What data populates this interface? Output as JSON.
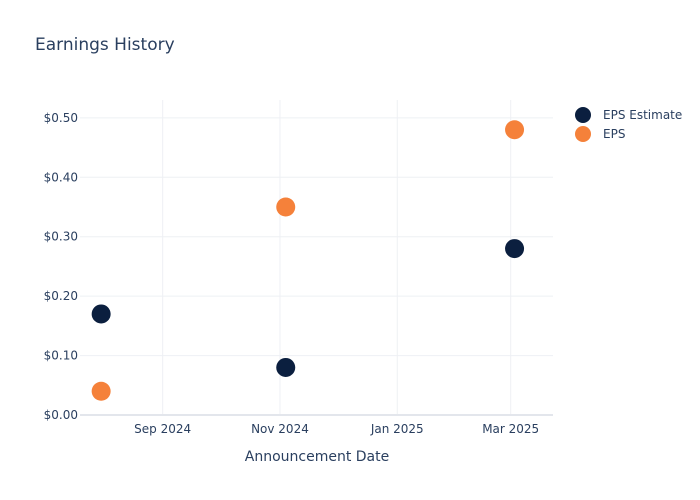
{
  "chart_data": {
    "type": "scatter",
    "title": "Earnings History",
    "xlabel": "Announcement Date",
    "ylabel": "",
    "x_ticks": [
      {
        "date": "2024-09-01",
        "label": "Sep 2024"
      },
      {
        "date": "2024-11-01",
        "label": "Nov 2024"
      },
      {
        "date": "2025-01-01",
        "label": "Jan 2025"
      },
      {
        "date": "2025-03-01",
        "label": "Mar 2025"
      }
    ],
    "xlim": [
      "2024-07-20",
      "2025-03-23"
    ],
    "ylim": [
      0,
      0.53
    ],
    "y_ticks": [
      {
        "value": 0.0,
        "label": "$0.00"
      },
      {
        "value": 0.1,
        "label": "$0.10"
      },
      {
        "value": 0.2,
        "label": "$0.20"
      },
      {
        "value": 0.3,
        "label": "$0.30"
      },
      {
        "value": 0.4,
        "label": "$0.40"
      },
      {
        "value": 0.5,
        "label": "$0.50"
      }
    ],
    "grid": true,
    "legend_position": "top-right",
    "series": [
      {
        "name": "EPS Estimate",
        "color": "#0b1f3f",
        "points": [
          {
            "x": "2024-07-31",
            "y": 0.17
          },
          {
            "x": "2024-11-04",
            "y": 0.08
          },
          {
            "x": "2025-03-03",
            "y": 0.28
          }
        ]
      },
      {
        "name": "EPS",
        "color": "#f5813a",
        "points": [
          {
            "x": "2024-07-31",
            "y": 0.04
          },
          {
            "x": "2024-11-04",
            "y": 0.35
          },
          {
            "x": "2025-03-03",
            "y": 0.48
          }
        ]
      }
    ]
  }
}
